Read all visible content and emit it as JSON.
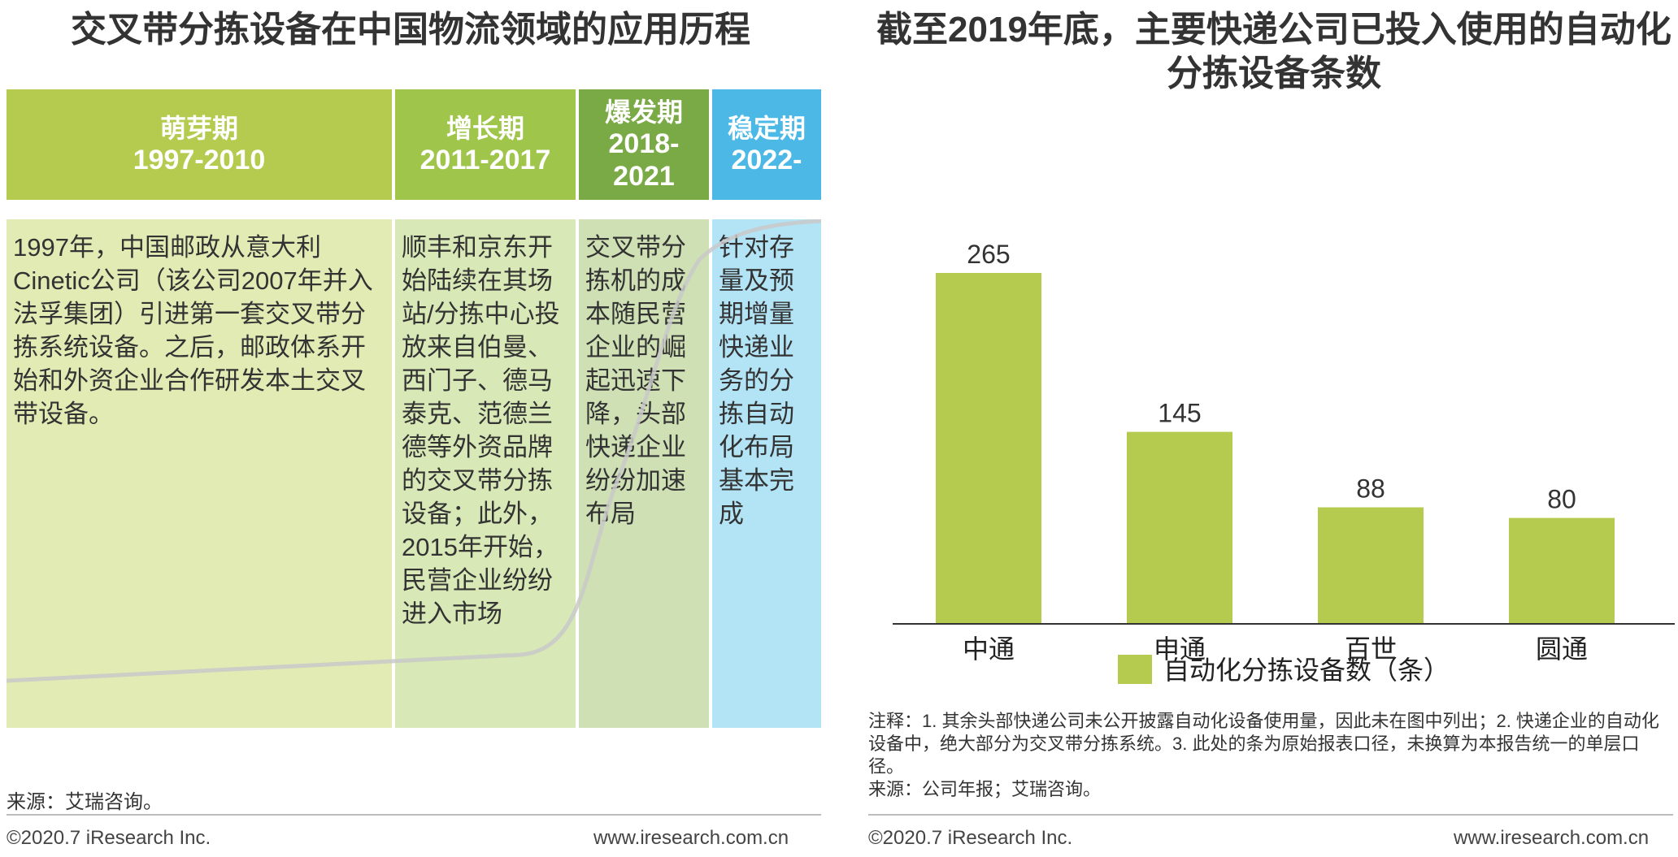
{
  "left": {
    "title": "交叉带分拣设备在中国物流领域的应用历程",
    "phases": [
      {
        "name": "萌芽期",
        "years": "1997-2010",
        "color": "#b5cb4f",
        "body_color": "#e3ebb4",
        "text": "1997年，中国邮政从意大利Cinetic公司（该公司2007年并入法孚集团）引进第一套交叉带分拣系统设备。之后，邮政体系开始和外资企业合作研发本土交叉带设备。"
      },
      {
        "name": "增长期",
        "years": "2011-2017",
        "color": "#9fc54b",
        "body_color": "#d8e8b6",
        "text": "顺丰和京东开始陆续在其场站/分拣中心投放来自伯曼、西门子、德马泰克、范德兰德等外资品牌的交叉带分拣设备；此外，2015年开始，民营企业纷纷进入市场"
      },
      {
        "name": "爆发期",
        "years": "2018-2021",
        "color": "#7aaa45",
        "body_color": "#cfe0b4",
        "text": "交叉带分拣机的成本随民营企业的崛起迅速下降，头部快递企业纷纷加速布局"
      },
      {
        "name": "稳定期",
        "years": "2022-",
        "color": "#4cb8e6",
        "body_color": "#b3e4f6",
        "text": "针对存量及预期增量快递业务的分拣自动化布局基本完成"
      }
    ],
    "source": "来源：艾瑞咨询。",
    "copyright": "©2020.7 iResearch Inc.",
    "website": "www.iresearch.com.cn"
  },
  "right": {
    "title": "截至2019年底，主要快递公司已投入使用的自动化分拣设备条数",
    "note": "注释：1. 其余头部快递公司未公开披露自动化设备使用量，因此未在图中列出；2. 快递企业的自动化设备中，绝大部分为交叉带分拣系统。3. 此处的条为原始报表口径，未换算为本报告统一的单层口径。",
    "source": "来源：公司年报；艾瑞咨询。",
    "copyright": "©2020.7 iResearch Inc.",
    "website": "www.iresearch.com.cn"
  },
  "chart_data": {
    "type": "bar",
    "categories": [
      "中通",
      "申通",
      "百世",
      "圆通"
    ],
    "series": [
      {
        "name": "自动化分拣设备数（条）",
        "values": [
          265,
          145,
          88,
          80
        ]
      }
    ],
    "title": "截至2019年底，主要快递公司已投入使用的自动化分拣设备条数",
    "xlabel": "",
    "ylabel": "",
    "ylim": [
      0,
      290
    ],
    "grid": false,
    "legend": "bottom",
    "bar_color": "#b5cb4f"
  }
}
